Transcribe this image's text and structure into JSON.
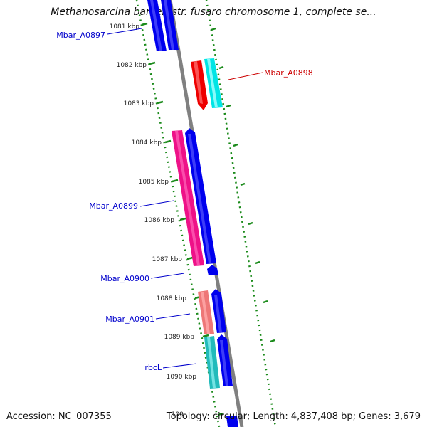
{
  "title": "Methanosarcina barkeri str. fusaro chromosome 1, complete se...",
  "accession": "Accession: NC_007355",
  "summary": "Topology: circular; Length: 4,837,408 bp; Genes: 3,679",
  "scale": {
    "ticks": [
      "1081 kbp",
      "1082 kbp",
      "1083 kbp",
      "1084 kbp",
      "1085 kbp",
      "1086 kbp",
      "1087 kbp",
      "1088 kbp",
      "1089 kbp",
      "1090 kbp",
      "109"
    ]
  },
  "genes": [
    {
      "label": "Mbar_A0897",
      "color": "#0000cc"
    },
    {
      "label": "Mbar_A0898",
      "color": "#cc0000"
    },
    {
      "label": "Mbar_A0899",
      "color": "#0000cc"
    },
    {
      "label": "Mbar_A0900",
      "color": "#0000cc"
    },
    {
      "label": "Mbar_A0901",
      "color": "#0000cc"
    },
    {
      "label": "rbcL",
      "color": "#0000cc"
    }
  ],
  "colors": {
    "backbone": "#808080",
    "gc_dots": "#1a8a1a",
    "blue_feature": "#0000ee",
    "red_feature": "#ee0000",
    "cyan_feature": "#00e5e5",
    "pink_feature": "#ee1188",
    "salmon_feature": "#ee7777",
    "teal_feature": "#22bbbb"
  }
}
